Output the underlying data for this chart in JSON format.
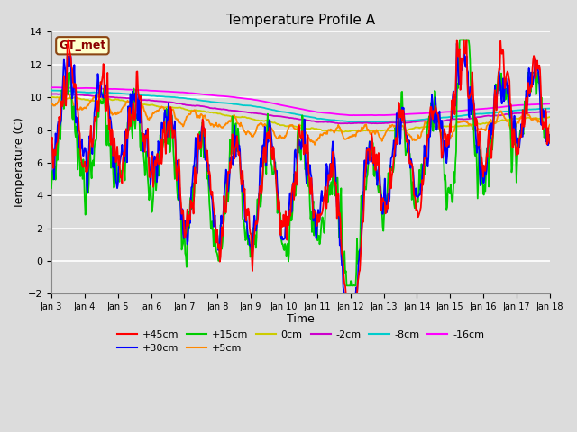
{
  "title": "Temperature Profile A",
  "xlabel": "Time",
  "ylabel": "Temperature (C)",
  "ylim": [
    -2,
    14
  ],
  "yticks": [
    -2,
    0,
    2,
    4,
    6,
    8,
    10,
    12,
    14
  ],
  "xtick_labels": [
    "Jan 3",
    "Jan 4",
    "Jan 5",
    "Jan 6",
    "Jan 7",
    "Jan 8",
    "Jan 9",
    "Jan 10",
    "Jan 11",
    "Jan 12",
    "Jan 13",
    "Jan 14",
    "Jan 15",
    "Jan 16",
    "Jan 17",
    "Jan 18"
  ],
  "bg_color": "#dcdcdc",
  "annotation_text": "GT_met",
  "annotation_bg": "#ffffcc",
  "annotation_border": "#8B4513",
  "annotation_text_color": "#8B0000",
  "series_colors": {
    "+45cm": "#ff0000",
    "+30cm": "#0000ff",
    "+15cm": "#00cc00",
    "+5cm": "#ff8800",
    "0cm": "#cccc00",
    "-2cm": "#cc00cc",
    "-8cm": "#00cccc",
    "-16cm": "#ff00ff"
  },
  "legend_ncol1": 6,
  "legend_ncol2": 2
}
